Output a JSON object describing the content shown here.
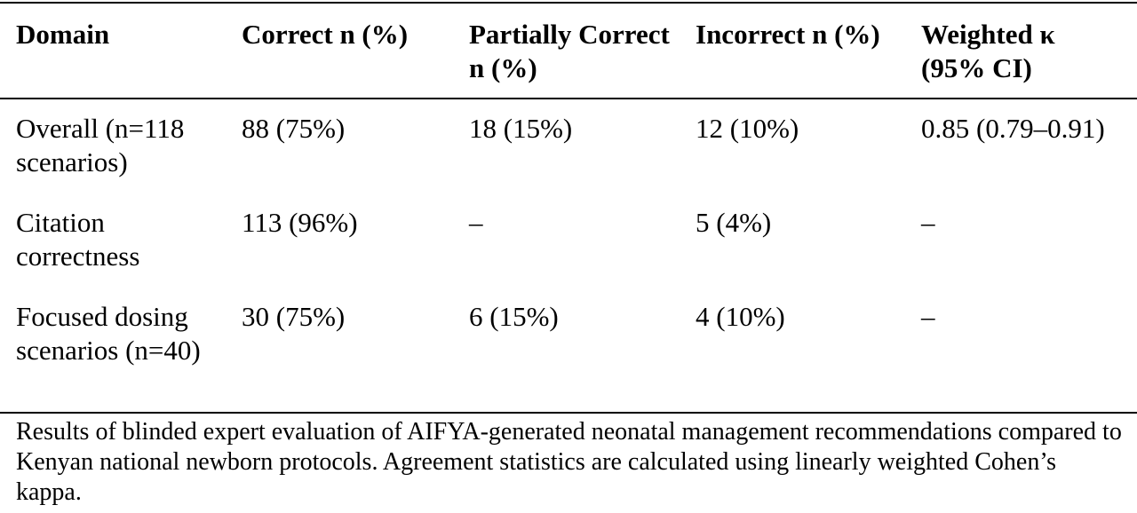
{
  "table": {
    "headers": [
      "Domain",
      "Correct n (%)",
      "Partially Correct n (%)",
      "Incorrect n (%)",
      "Weighted κ (95% CI)"
    ],
    "rows": [
      [
        "Overall (n=118 scenarios)",
        "88 (75%)",
        "18 (15%)",
        "12 (10%)",
        "0.85 (0.79–0.91)"
      ],
      [
        "Citation correctness",
        "113 (96%)",
        "–",
        "5 (4%)",
        "–"
      ],
      [
        "Focused dosing scenarios (n=40)",
        "30 (75%)",
        "6 (15%)",
        "4 (10%)",
        "–"
      ]
    ]
  },
  "caption": "Results of blinded expert evaluation of AIFYA-generated neonatal management recommendations compared to Kenyan national newborn protocols. Agreement statistics are calculated using linearly weighted Cohen’s kappa."
}
